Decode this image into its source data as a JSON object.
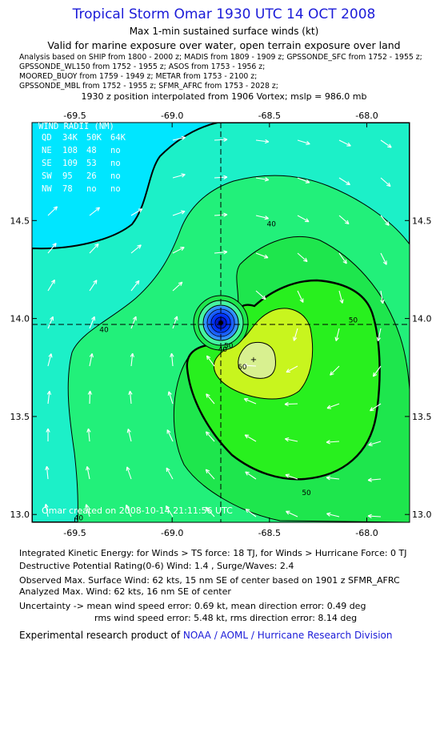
{
  "header": {
    "title": "Tropical Storm Omar 1930 UTC 14 OCT 2008",
    "subtitle": "Max 1-min sustained surface winds (kt)",
    "valid_for": "Valid for marine exposure over water, open terrain exposure over land",
    "sources": [
      "Analysis based on   SHIP from 1800 - 2000 z;   MADIS from 1809 - 1909 z;   GPSSONDE_SFC from 1752 - 1955 z;",
      "GPSSONDE_WL150 from 1752 - 1955 z;   ASOS from 1753 - 1956 z;",
      "MOORED_BUOY from 1759 - 1949 z;   METAR from 1753 - 2100 z;",
      "GPSSONDE_MBL from 1752 - 1955 z;   SFMR_AFRC from 1753 - 2028 z;"
    ],
    "position_note": "1930 z position interpolated from 1906 Vortex; mslp = 986.0 mb"
  },
  "chart_data": {
    "type": "contour",
    "xlim": [
      -69.72,
      -67.78
    ],
    "ylim": [
      12.96,
      15.0
    ],
    "x_ticks": [
      "-69.5",
      "-69.0",
      "-68.5",
      "-68.0"
    ],
    "x_tick_values": [
      -69.5,
      -69.0,
      -68.5,
      -68.0
    ],
    "y_ticks": [
      "14.5",
      "14.0",
      "13.5",
      "13.0"
    ],
    "y_tick_values": [
      14.5,
      14.0,
      13.5,
      13.0
    ],
    "center": {
      "lon": -68.74,
      "lat": 13.92
    },
    "max_wind_location": {
      "lon": -68.56,
      "lat": 13.74
    },
    "contour_labels": [
      {
        "text": "40",
        "lon": -68.49,
        "lat": 14.47
      },
      {
        "text": "40",
        "lon": -69.35,
        "lat": 13.93
      },
      {
        "text": "40",
        "lon": -69.48,
        "lat": 12.97
      },
      {
        "text": "50",
        "lon": -68.71,
        "lat": 13.85
      },
      {
        "text": "40",
        "lon": -68.74,
        "lat": 13.83
      },
      {
        "text": "60",
        "lon": -68.64,
        "lat": 13.74
      },
      {
        "text": "50",
        "lon": -68.07,
        "lat": 13.98
      },
      {
        "text": "50",
        "lon": -68.31,
        "lat": 13.1
      }
    ],
    "contour_colors": {
      "lt30": "#00e6ff",
      "30to40": "#00ffb8",
      "40to50": "#42f542",
      "50to60": "#1ee64d",
      "gt60": "#c8f51e",
      "core": "#0030ff"
    },
    "wind_radii_table": {
      "title": "WIND RADII (NM)",
      "header": [
        "QD",
        "34K",
        "50K",
        "64K"
      ],
      "rows": [
        [
          "NE",
          "108",
          "48",
          "no"
        ],
        [
          "SE",
          "109",
          "53",
          "no"
        ],
        [
          "SW",
          "95",
          "26",
          "no"
        ],
        [
          "NW",
          "78",
          "no",
          "no"
        ]
      ]
    },
    "footer_stamp": "Omar     created on 2008-10-14 21:11:56 UTC"
  },
  "info": {
    "ike": "Integrated Kinetic Energy:  for Winds > TS force: 18 TJ,  for Winds > Hurricane Force: 0 TJ",
    "dpr": "Destructive Potential Rating(0-6)   Wind: 1.4 , Surge/Waves: 2.4",
    "obs_max": "Observed Max. Surface Wind: 62 kts, 15 nm SE of center based on 1901 z SFMR_AFRC",
    "analyzed_max": "Analyzed Max. Wind: 62 kts, 16 nm SE of center",
    "uncert1": "Uncertainty -> mean wind speed error: 0.69 kt,   mean direction error: 0.49 deg",
    "uncert2": "rms wind speed error: 5.48 kt,   rms direction error: 8.14 deg",
    "product_prefix": "Experimental research product of ",
    "product_org": "NOAA / AOML / Hurricane Research Division"
  }
}
